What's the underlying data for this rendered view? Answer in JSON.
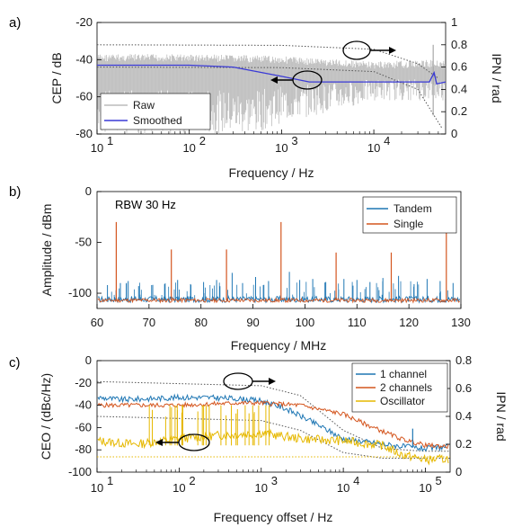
{
  "chart_data": [
    {
      "panel_label": "a)",
      "type": "line",
      "x_scale": "log",
      "xlim": [
        10,
        60000
      ],
      "xlabel": "Frequency / Hz",
      "x_ticks": [
        10,
        100,
        1000,
        10000
      ],
      "x_tick_labels": [
        "10",
        "2",
        "3",
        "4"
      ],
      "ylabel": "CEP / dB",
      "ylim": [
        -80,
        -20
      ],
      "y_ticks": [
        -80,
        -60,
        -40,
        -20
      ],
      "y_tick_labels": [
        "-80",
        "-60",
        "-40",
        "-20"
      ],
      "y2label": "IPN / rad",
      "y2lim": [
        0,
        1
      ],
      "y2_ticks": [
        0,
        0.2,
        0.4,
        0.6,
        0.8,
        1
      ],
      "y2_tick_labels": [
        "0",
        "0.2",
        "0.4",
        "0.6",
        "0.8",
        "1"
      ],
      "legend_position": "bottom-left",
      "series": [
        {
          "name": "Raw",
          "color": "#bcbcbc",
          "envelope_upper": [
            [
              10,
              -37
            ],
            [
              100,
              -37
            ],
            [
              1000,
              -38
            ],
            [
              10000,
              -41
            ],
            [
              50000,
              -40
            ]
          ],
          "envelope_lower": [
            [
              10,
              -80
            ],
            [
              100,
              -80
            ],
            [
              500,
              -80
            ],
            [
              1000,
              -74
            ],
            [
              5000,
              -66
            ],
            [
              10000,
              -62
            ],
            [
              50000,
              -62
            ]
          ]
        },
        {
          "name": "Smoothed",
          "color": "#3a3ad6",
          "points": [
            [
              10,
              -43
            ],
            [
              100,
              -43
            ],
            [
              300,
              -44
            ],
            [
              1000,
              -49
            ],
            [
              2000,
              -52
            ],
            [
              10000,
              -52
            ],
            [
              40000,
              -52
            ],
            [
              45000,
              -47
            ],
            [
              48000,
              -53
            ],
            [
              60000,
              -52
            ]
          ]
        }
      ],
      "ipn_curve": [
        [
          10,
          0.8
        ],
        [
          1000,
          0.795
        ],
        [
          10000,
          0.76
        ],
        [
          30000,
          0.63
        ],
        [
          50000,
          0.5
        ]
      ],
      "ipn_curve2": [
        [
          10,
          0.6
        ],
        [
          1000,
          0.595
        ],
        [
          10000,
          0.56
        ],
        [
          30000,
          0.4
        ],
        [
          55000,
          0.05
        ]
      ]
    },
    {
      "panel_label": "b)",
      "type": "line",
      "annotation": "RBW 30 Hz",
      "xlabel": "Frequency / MHz",
      "xlim": [
        60,
        130
      ],
      "x_ticks": [
        60,
        70,
        80,
        90,
        100,
        110,
        120,
        130
      ],
      "ylabel": "Amplitude / dBm",
      "ylim": [
        -115,
        0
      ],
      "y_ticks": [
        -100,
        -50,
        0
      ],
      "legend_position": "top-right",
      "series": [
        {
          "name": "Tandem",
          "color": "#1f77b4",
          "noise_floor": -106,
          "spike_x": [
            62,
            64.5,
            66,
            68,
            70.5,
            73,
            75.5,
            78,
            80.5,
            83,
            86,
            88,
            90.5,
            93,
            97,
            99,
            101.5,
            104,
            107.5,
            110,
            112.5,
            115,
            118,
            121,
            123.5,
            126,
            128.5
          ],
          "spike_y": [
            -92,
            -90,
            -88,
            -93,
            -92,
            -91,
            -87,
            -91,
            -89,
            -87,
            -80,
            -90,
            -84,
            -88,
            -79,
            -87,
            -86,
            -89,
            -86,
            -87,
            -89,
            -85,
            -83,
            -91,
            -86,
            -88,
            -90
          ]
        },
        {
          "name": "Single",
          "color": "#d4561f",
          "noise_floor": -107,
          "spike_x": [
            63.7,
            74.3,
            84.9,
            95.4,
            106,
            116.6,
            127.2
          ],
          "spike_y": [
            -30,
            -57,
            -57,
            -30,
            -60,
            -60,
            -30
          ]
        }
      ]
    },
    {
      "panel_label": "c)",
      "type": "line",
      "x_scale": "log",
      "xlim": [
        10,
        200000
      ],
      "xlabel": "Frequency offset / Hz",
      "x_ticks": [
        10,
        100,
        1000,
        10000,
        100000
      ],
      "x_tick_labels": [
        "1",
        "2",
        "3",
        "4",
        "5"
      ],
      "ylabel": "CEO / (dBc/Hz)",
      "ylim": [
        -100,
        0
      ],
      "y_ticks": [
        -100,
        -80,
        -60,
        -40,
        -20,
        0
      ],
      "y2label": "IPN / rad",
      "y2lim": [
        0,
        0.8
      ],
      "y2_ticks": [
        0,
        0.2,
        0.4,
        0.6,
        0.8
      ],
      "legend_position": "top-right",
      "series": [
        {
          "name": "1 channel",
          "color": "#1f77b4",
          "points": [
            [
              10,
              -33
            ],
            [
              20,
              -35
            ],
            [
              50,
              -34
            ],
            [
              100,
              -33
            ],
            [
              200,
              -33
            ],
            [
              500,
              -34
            ],
            [
              1000,
              -36
            ],
            [
              2000,
              -43
            ],
            [
              5000,
              -58
            ],
            [
              10000,
              -70
            ],
            [
              20000,
              -73
            ],
            [
              40000,
              -76
            ],
            [
              100000,
              -79
            ],
            [
              200000,
              -77
            ]
          ]
        },
        {
          "name": "2 channels",
          "color": "#d4561f",
          "points": [
            [
              10,
              -40
            ],
            [
              50,
              -40
            ],
            [
              100,
              -40
            ],
            [
              500,
              -38
            ],
            [
              1000,
              -38
            ],
            [
              3000,
              -40
            ],
            [
              10000,
              -48
            ],
            [
              20000,
              -58
            ],
            [
              50000,
              -70
            ],
            [
              100000,
              -76
            ],
            [
              200000,
              -77
            ]
          ]
        },
        {
          "name": "Oscillator",
          "color": "#e6b800",
          "points": [
            [
              10,
              -72
            ],
            [
              30,
              -75
            ],
            [
              100,
              -70
            ],
            [
              300,
              -67
            ],
            [
              1000,
              -65
            ],
            [
              3000,
              -70
            ],
            [
              10000,
              -72
            ],
            [
              30000,
              -76
            ],
            [
              50000,
              -84
            ],
            [
              100000,
              -89
            ],
            [
              200000,
              -88
            ]
          ]
        }
      ],
      "ipn_curve": [
        [
          10,
          0.65
        ],
        [
          1000,
          0.62
        ],
        [
          3000,
          0.55
        ],
        [
          10000,
          0.3
        ],
        [
          30000,
          0.17
        ],
        [
          100000,
          0.15
        ],
        [
          200000,
          0.15
        ]
      ],
      "ipn_curve2": [
        [
          10,
          0.4
        ],
        [
          1000,
          0.37
        ],
        [
          3000,
          0.3
        ],
        [
          10000,
          0.14
        ],
        [
          30000,
          0.1
        ],
        [
          200000,
          0.1
        ]
      ]
    }
  ]
}
